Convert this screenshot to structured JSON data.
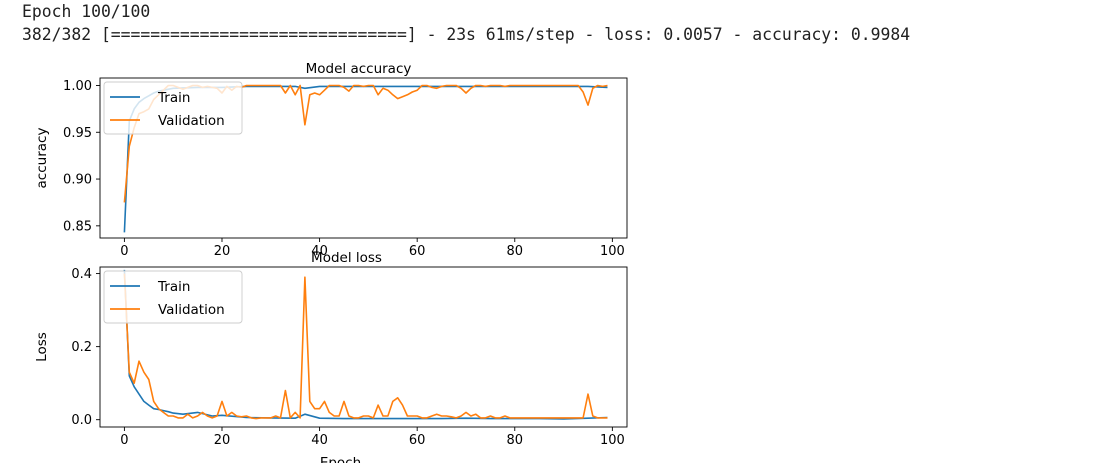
{
  "console": {
    "line1": "Epoch 100/100",
    "line2": "382/382 [==============================] - 23s 61ms/step - loss: 0.0057 - accuracy: 0.9984"
  },
  "colors": {
    "train": "#1f77b4",
    "validation": "#ff7f0e",
    "axis": "#000000"
  },
  "chart_data": [
    {
      "type": "line",
      "title": "Model accuracy",
      "xlabel": "",
      "ylabel": "accuracy",
      "xlim": [
        -5,
        103
      ],
      "ylim": [
        0.837,
        1.008
      ],
      "xticks": [
        0,
        20,
        40,
        60,
        80,
        100
      ],
      "yticks": [
        0.85,
        0.9,
        0.95,
        1.0
      ],
      "ytick_labels": [
        "0.85",
        "0.90",
        "0.95",
        "1.00"
      ],
      "grid": false,
      "legend": "upper left",
      "series": [
        {
          "name": "Train",
          "color": "#1f77b4",
          "x": [
            0,
            1,
            2,
            3,
            4,
            5,
            6,
            7,
            8,
            10,
            15,
            20,
            25,
            30,
            35,
            37,
            40,
            45,
            50,
            55,
            60,
            65,
            70,
            75,
            80,
            85,
            90,
            95,
            99
          ],
          "y": [
            0.843,
            0.962,
            0.975,
            0.982,
            0.986,
            0.989,
            0.992,
            0.994,
            0.995,
            0.997,
            0.998,
            0.998,
            0.999,
            0.999,
            0.999,
            0.997,
            0.999,
            0.999,
            0.999,
            0.999,
            0.999,
            0.999,
            0.999,
            0.999,
            0.999,
            0.999,
            0.999,
            0.999,
            0.998
          ]
        },
        {
          "name": "Validation",
          "color": "#ff7f0e",
          "x": [
            0,
            1,
            2,
            3,
            4,
            5,
            6,
            7,
            8,
            9,
            10,
            11,
            12,
            13,
            14,
            15,
            16,
            17,
            18,
            19,
            20,
            21,
            22,
            23,
            24,
            25,
            26,
            27,
            28,
            29,
            30,
            31,
            32,
            33,
            34,
            35,
            36,
            37,
            38,
            39,
            40,
            41,
            42,
            43,
            44,
            45,
            46,
            47,
            48,
            49,
            50,
            51,
            52,
            53,
            54,
            55,
            56,
            57,
            58,
            59,
            60,
            61,
            62,
            63,
            64,
            65,
            66,
            67,
            68,
            69,
            70,
            71,
            72,
            73,
            74,
            75,
            76,
            77,
            78,
            79,
            80,
            81,
            82,
            83,
            84,
            85,
            86,
            87,
            88,
            89,
            90,
            91,
            92,
            93,
            94,
            95,
            96,
            97,
            98,
            99
          ],
          "y": [
            0.875,
            0.935,
            0.955,
            0.97,
            0.972,
            0.975,
            0.985,
            0.99,
            0.995,
            1.0,
            1.0,
            0.998,
            0.996,
            0.998,
            1.0,
            1.0,
            0.998,
            0.999,
            0.998,
            0.997,
            0.992,
            0.999,
            0.995,
            0.999,
            0.998,
            1.0,
            1.0,
            1.0,
            1.0,
            1.0,
            1.0,
            1.0,
            1.0,
            0.992,
            1.0,
            0.99,
            1.0,
            0.958,
            0.99,
            0.992,
            0.99,
            0.995,
            1.0,
            1.0,
            1.0,
            0.998,
            0.994,
            1.0,
            1.0,
            0.999,
            1.0,
            1.0,
            0.99,
            0.997,
            0.995,
            0.99,
            0.986,
            0.988,
            0.99,
            0.993,
            0.995,
            1.0,
            1.0,
            0.998,
            0.997,
            0.999,
            1.0,
            1.0,
            1.0,
            0.997,
            0.992,
            0.997,
            1.0,
            1.0,
            0.999,
            1.0,
            1.0,
            1.0,
            0.999,
            1.0,
            1.0,
            1.0,
            1.0,
            1.0,
            1.0,
            1.0,
            1.0,
            1.0,
            1.0,
            1.0,
            1.0,
            1.0,
            1.0,
            1.0,
            0.993,
            0.979,
            0.997,
            1.0,
            0.999,
            1.0
          ]
        }
      ]
    },
    {
      "type": "line",
      "title": "Model loss",
      "xlabel": "Epoch",
      "ylabel": "Loss",
      "xlim": [
        -5,
        103
      ],
      "ylim": [
        -0.02,
        0.418
      ],
      "xticks": [
        0,
        20,
        40,
        60,
        80,
        100
      ],
      "yticks": [
        0.0,
        0.2,
        0.4
      ],
      "ytick_labels": [
        "0.0",
        "0.2",
        "0.4"
      ],
      "grid": false,
      "legend": "upper left",
      "series": [
        {
          "name": "Train",
          "color": "#1f77b4",
          "x": [
            0,
            1,
            2,
            3,
            4,
            5,
            6,
            7,
            8,
            9,
            10,
            12,
            15,
            18,
            20,
            25,
            30,
            35,
            37,
            40,
            45,
            50,
            55,
            60,
            65,
            70,
            75,
            80,
            85,
            90,
            95,
            99
          ],
          "y": [
            0.41,
            0.12,
            0.09,
            0.07,
            0.05,
            0.04,
            0.03,
            0.028,
            0.025,
            0.022,
            0.018,
            0.015,
            0.02,
            0.01,
            0.012,
            0.006,
            0.005,
            0.004,
            0.015,
            0.004,
            0.003,
            0.003,
            0.003,
            0.003,
            0.003,
            0.004,
            0.003,
            0.003,
            0.003,
            0.002,
            0.004,
            0.006
          ]
        },
        {
          "name": "Validation",
          "color": "#ff7f0e",
          "x": [
            0,
            1,
            2,
            3,
            4,
            5,
            6,
            7,
            8,
            9,
            10,
            11,
            12,
            13,
            14,
            15,
            16,
            17,
            18,
            19,
            20,
            21,
            22,
            23,
            24,
            25,
            26,
            27,
            28,
            29,
            30,
            31,
            32,
            33,
            34,
            35,
            36,
            37,
            38,
            39,
            40,
            41,
            42,
            43,
            44,
            45,
            46,
            47,
            48,
            49,
            50,
            51,
            52,
            53,
            54,
            55,
            56,
            57,
            58,
            59,
            60,
            61,
            62,
            63,
            64,
            65,
            66,
            67,
            68,
            69,
            70,
            71,
            72,
            73,
            74,
            75,
            76,
            77,
            78,
            79,
            80,
            81,
            82,
            83,
            84,
            85,
            86,
            87,
            88,
            89,
            90,
            91,
            92,
            93,
            94,
            95,
            96,
            97,
            98,
            99
          ],
          "y": [
            0.4,
            0.13,
            0.1,
            0.16,
            0.13,
            0.11,
            0.05,
            0.03,
            0.02,
            0.01,
            0.01,
            0.005,
            0.005,
            0.015,
            0.005,
            0.01,
            0.02,
            0.01,
            0.005,
            0.01,
            0.05,
            0.01,
            0.02,
            0.01,
            0.008,
            0.01,
            0.005,
            0.003,
            0.005,
            0.005,
            0.005,
            0.01,
            0.005,
            0.08,
            0.005,
            0.02,
            0.005,
            0.39,
            0.05,
            0.03,
            0.03,
            0.05,
            0.02,
            0.01,
            0.01,
            0.05,
            0.01,
            0.005,
            0.005,
            0.01,
            0.01,
            0.005,
            0.04,
            0.01,
            0.01,
            0.05,
            0.06,
            0.04,
            0.01,
            0.01,
            0.01,
            0.005,
            0.005,
            0.01,
            0.015,
            0.01,
            0.01,
            0.008,
            0.005,
            0.01,
            0.02,
            0.01,
            0.015,
            0.005,
            0.005,
            0.01,
            0.005,
            0.005,
            0.01,
            0.005,
            0.005,
            0.005,
            0.005,
            0.005,
            0.005,
            0.005,
            0.005,
            0.005,
            0.005,
            0.005,
            0.005,
            0.005,
            0.005,
            0.005,
            0.005,
            0.07,
            0.01,
            0.005,
            0.005,
            0.005
          ]
        }
      ]
    }
  ]
}
